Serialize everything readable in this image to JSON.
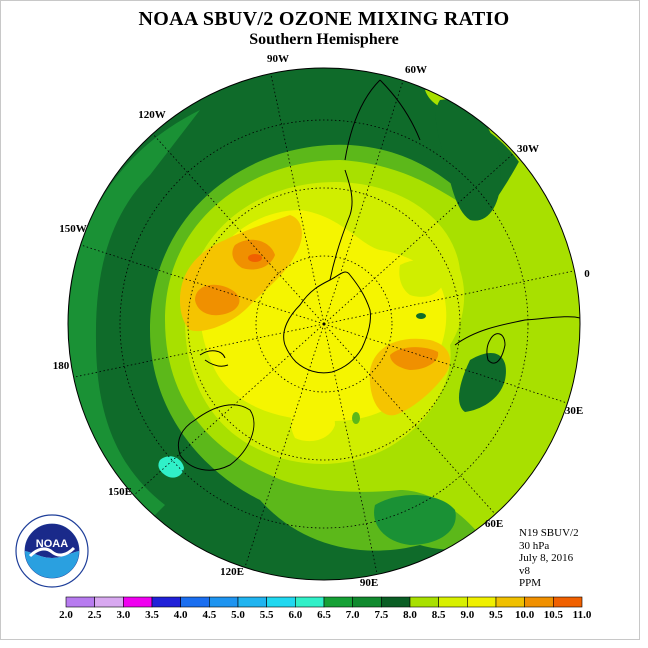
{
  "title": "NOAA SBUV/2 OZONE MIXING RATIO",
  "subtitle": "Southern Hemisphere",
  "info": {
    "satellite": "N19 SBUV/2",
    "level": "30 hPa",
    "date": "July 8, 2016",
    "version": "v8",
    "units": "PPM"
  },
  "longitude_labels": [
    "90W",
    "60W",
    "30W",
    "0",
    "30E",
    "60E",
    "90E",
    "120E",
    "150E",
    "180",
    "150W",
    "120W"
  ],
  "colorbar": {
    "ticks": [
      "2.0",
      "2.5",
      "3.0",
      "3.5",
      "4.0",
      "4.5",
      "5.0",
      "5.5",
      "6.0",
      "6.5",
      "7.0",
      "7.5",
      "8.0",
      "8.5",
      "9.0",
      "9.5",
      "10.0",
      "10.5",
      "11.0"
    ],
    "colors": [
      "#b77bef",
      "#d8a8f0",
      "#f000f0",
      "#2020d8",
      "#1a6ef0",
      "#1e94f0",
      "#20b4f0",
      "#20d8f0",
      "#30f0c8",
      "#15a035",
      "#108a2e",
      "#0a5e24",
      "#a8e000",
      "#d8f000",
      "#f0f000",
      "#f0c000",
      "#f09000",
      "#f06000",
      "#f00000",
      "#8b5a3c"
    ]
  },
  "logo": {
    "text": "NOAA",
    "ring_text": "NATIONAL OCEANIC AND ATMOSPHERIC ADMINISTRATION · U.S. DEPARTMENT OF COMMERCE"
  },
  "colors": {
    "band_6_5_7_0": "#0f6b2a",
    "band_6_0_6_5": "#1a9135",
    "band_7_0_7_5": "#5cb81a",
    "band_7_5_8_0": "#a8e000",
    "band_8_0_8_5": "#d0ee00",
    "band_8_5_9_0": "#f5f500",
    "band_9_0_9_5": "#f5c400",
    "band_9_5_10_0": "#f09000",
    "band_10_0_10_5": "#f06000",
    "cyan_patch": "#30f0c8"
  }
}
